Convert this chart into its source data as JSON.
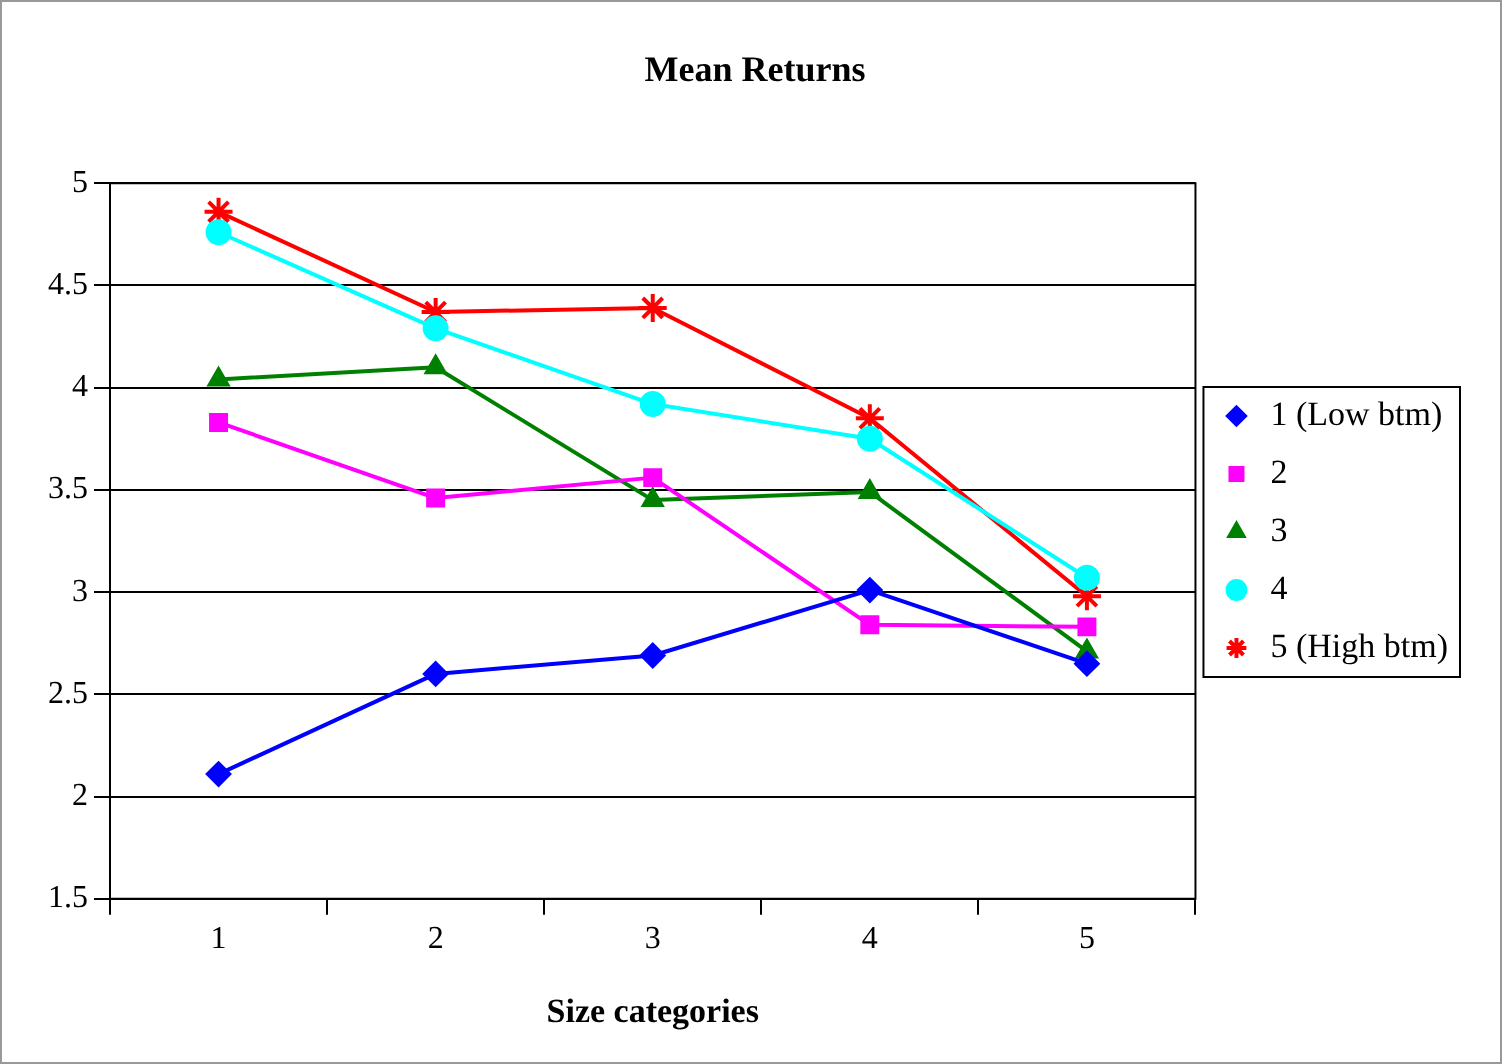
{
  "chart_data": {
    "type": "line",
    "title": "Mean Returns",
    "xlabel": "Size categories",
    "categories": [
      "1",
      "2",
      "3",
      "4",
      "5"
    ],
    "ylim": [
      1.5,
      5
    ],
    "yticks": [
      1.5,
      2,
      2.5,
      3,
      3.5,
      4,
      4.5,
      5
    ],
    "grid": "y",
    "legend": "right",
    "line_style": "solid",
    "series": [
      {
        "name": "1 (Low btm)",
        "color": "#0000ff",
        "marker": "diamond",
        "values": [
          2.11,
          2.6,
          2.69,
          3.01,
          2.65
        ]
      },
      {
        "name": "2",
        "color": "#ff00ff",
        "marker": "square",
        "values": [
          3.83,
          3.46,
          3.56,
          2.84,
          2.83
        ]
      },
      {
        "name": "3",
        "color": "#008000",
        "marker": "triangle",
        "values": [
          4.04,
          4.1,
          3.45,
          3.49,
          2.71
        ]
      },
      {
        "name": "4",
        "color": "#00ffff",
        "marker": "circle",
        "values": [
          4.76,
          4.29,
          3.92,
          3.75,
          3.07
        ]
      },
      {
        "name": "5 (High btm)",
        "color": "#ff0000",
        "marker": "cross",
        "values": [
          4.86,
          4.37,
          4.39,
          3.85,
          2.98
        ]
      }
    ]
  }
}
